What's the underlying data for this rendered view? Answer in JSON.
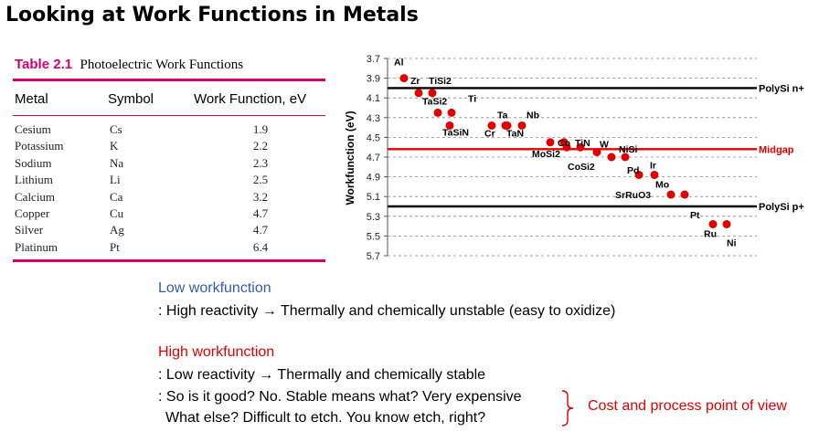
{
  "slide": {
    "title": "Looking at Work Functions in Metals"
  },
  "table": {
    "number": "Table 2.1",
    "caption": "Photoelectric Work Functions",
    "headers": [
      "Metal",
      "Symbol",
      "Work Function, eV"
    ],
    "rows": [
      {
        "metal": "Cesium",
        "symbol": "Cs",
        "wf": "1.9"
      },
      {
        "metal": "Potassium",
        "symbol": "K",
        "wf": "2.2"
      },
      {
        "metal": "Sodium",
        "symbol": "Na",
        "wf": "2.3"
      },
      {
        "metal": "Lithium",
        "symbol": "Li",
        "wf": "2.5"
      },
      {
        "metal": "Calcium",
        "symbol": "Ca",
        "wf": "3.2"
      },
      {
        "metal": "Copper",
        "symbol": "Cu",
        "wf": "4.7"
      },
      {
        "metal": "Silver",
        "symbol": "Ag",
        "wf": "4.7"
      },
      {
        "metal": "Platinum",
        "symbol": "Pt",
        "wf": "6.4"
      }
    ],
    "accent_color": "#d6006e"
  },
  "chart_data": {
    "type": "scatter",
    "ylabel": "Workfunction (eV)",
    "ylim": [
      3.7,
      5.7
    ],
    "y_inverted": true,
    "yticks": [
      "3.7",
      "3.9",
      "4.1",
      "4.3",
      "4.5",
      "4.7",
      "4.9",
      "5.1",
      "5.3",
      "5.5",
      "5.7"
    ],
    "grid": "horizontal dashed",
    "point_color": "#e00000",
    "points": [
      {
        "label": "Al",
        "wf": 3.9
      },
      {
        "label": "Zr",
        "wf": 4.05
      },
      {
        "label": "TiSi2",
        "wf": 4.05
      },
      {
        "label": "TaSi2",
        "wf": 4.25
      },
      {
        "label": "Ti",
        "wf": 4.25
      },
      {
        "label": "TaSiN",
        "wf": 4.38
      },
      {
        "label": "Cr",
        "wf": 4.38
      },
      {
        "label": "Ta",
        "wf": 4.38
      },
      {
        "label": "TaN",
        "wf": 4.38
      },
      {
        "label": "Nb",
        "wf": 4.38
      },
      {
        "label": "Co",
        "wf": 4.55
      },
      {
        "label": "TiN",
        "wf": 4.55
      },
      {
        "label": "MoSi2",
        "wf": 4.6
      },
      {
        "label": "CoSi2",
        "wf": 4.6
      },
      {
        "label": "W",
        "wf": 4.65
      },
      {
        "label": "NiSi",
        "wf": 4.7
      },
      {
        "label": "Pd",
        "wf": 4.7
      },
      {
        "label": "Ir",
        "wf": 4.88
      },
      {
        "label": "Mo",
        "wf": 4.88
      },
      {
        "label": "SrRuO3",
        "wf": 5.08
      },
      {
        "label": "Pt",
        "wf": 5.08
      },
      {
        "label": "Ru",
        "wf": 5.38
      },
      {
        "label": "Ni",
        "wf": 5.38
      }
    ],
    "reference_lines": [
      {
        "label": "PolySi n+",
        "wf": 4.0,
        "color": "#000000"
      },
      {
        "label": "Midgap",
        "wf": 4.62,
        "color": "#e00000"
      },
      {
        "label": "PolySi p+",
        "wf": 5.2,
        "color": "#000000"
      }
    ]
  },
  "text": {
    "low_heading": "Low workfunction",
    "low_line1": ": High reactivity → Thermally and chemically unstable (easy to oxidize)",
    "high_heading": "High workfunction",
    "high_line1": ": Low reactivity → Thermally and chemically stable",
    "high_line2": ": So is it good? No. Stable means what? Very expensive",
    "high_line3": "What else? Difficult to etch. You know etch, right?",
    "note": "Cost and process point of view",
    "blue_color": "#2f5ea8",
    "red_color": "#e00000"
  }
}
